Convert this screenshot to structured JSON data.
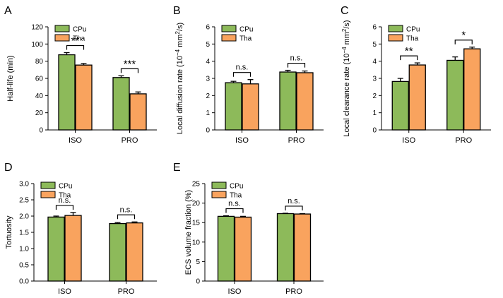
{
  "colors": {
    "cpu": "#8DBA5A",
    "tha": "#F9A35E",
    "axis": "#000000"
  },
  "chart_data": [
    {
      "panel_letter": "A",
      "type": "bar",
      "categories": [
        "ISO",
        "PRO"
      ],
      "series": [
        {
          "name": "CPu",
          "values": [
            87.5,
            61
          ],
          "errors": [
            2.5,
            2
          ]
        },
        {
          "name": "Tha",
          "values": [
            75.5,
            42
          ],
          "errors": [
            1.8,
            2.2
          ]
        }
      ],
      "ylabel": "Half-life (min)",
      "ylim": [
        0,
        120
      ],
      "yticks": [
        0,
        20,
        40,
        60,
        80,
        100,
        120
      ],
      "yticklabels": [
        "0",
        "20",
        "40",
        "60",
        "80",
        "100",
        "120"
      ],
      "significance": [
        "**",
        "***"
      ],
      "legend": [
        "CPu",
        "Tha"
      ]
    },
    {
      "panel_letter": "B",
      "type": "bar",
      "categories": [
        "ISO",
        "PRO"
      ],
      "series": [
        {
          "name": "CPu",
          "values": [
            2.75,
            3.37
          ],
          "errors": [
            0.08,
            0.1
          ]
        },
        {
          "name": "Tha",
          "values": [
            2.68,
            3.33
          ],
          "errors": [
            0.25,
            0.1
          ]
        }
      ],
      "ylabel_parts": [
        "Local diffusion rate (10",
        "−4",
        " mm",
        "2",
        "/s)"
      ],
      "ylim": [
        0,
        6
      ],
      "yticks": [
        0,
        1,
        2,
        3,
        4,
        5,
        6
      ],
      "yticklabels": [
        "0",
        "1",
        "2",
        "3",
        "4",
        "5",
        "6"
      ],
      "significance": [
        "n.s.",
        "n.s."
      ],
      "legend": [
        "CPu",
        "Tha"
      ]
    },
    {
      "panel_letter": "C",
      "type": "bar",
      "categories": [
        "ISO",
        "PRO"
      ],
      "series": [
        {
          "name": "CPu",
          "values": [
            2.82,
            4.05
          ],
          "errors": [
            0.18,
            0.2
          ]
        },
        {
          "name": "Tha",
          "values": [
            3.78,
            4.72
          ],
          "errors": [
            0.12,
            0.1
          ]
        }
      ],
      "ylabel_parts": [
        "Local clearance rate (10",
        "−4",
        " mm",
        "2",
        "/s)"
      ],
      "ylim": [
        0,
        6
      ],
      "yticks": [
        0,
        1,
        2,
        3,
        4,
        5,
        6
      ],
      "yticklabels": [
        "0",
        "1",
        "2",
        "3",
        "4",
        "5",
        "6"
      ],
      "significance": [
        "**",
        "*"
      ],
      "legend": [
        "CPu",
        "Tha"
      ]
    },
    {
      "panel_letter": "D",
      "type": "bar",
      "categories": [
        "ISO",
        "PRO"
      ],
      "series": [
        {
          "name": "CPu",
          "values": [
            1.97,
            1.77
          ],
          "errors": [
            0.03,
            0.03
          ]
        },
        {
          "name": "Tha",
          "values": [
            2.02,
            1.79
          ],
          "errors": [
            0.09,
            0.03
          ]
        }
      ],
      "ylabel": "Tortuosity",
      "ylim": [
        0,
        3
      ],
      "yticks": [
        0,
        0.5,
        1,
        1.5,
        2,
        2.5,
        3
      ],
      "yticklabels": [
        "0.0",
        "0.5",
        "1.0",
        "1.5",
        "2.0",
        "2.5",
        "3.0"
      ],
      "significance": [
        "n.s.",
        "n.s."
      ],
      "legend": [
        "CPu",
        "Tha"
      ]
    },
    {
      "panel_letter": "E",
      "type": "bar",
      "categories": [
        "ISO",
        "PRO"
      ],
      "series": [
        {
          "name": "CPu",
          "values": [
            16.6,
            17.3
          ],
          "errors": [
            0.15,
            0.1
          ]
        },
        {
          "name": "Tha",
          "values": [
            16.4,
            17.2
          ],
          "errors": [
            0.2,
            0.1
          ]
        }
      ],
      "ylabel": "ECS volume fraction (%)",
      "ylim": [
        0,
        25
      ],
      "yticks": [
        0,
        5,
        10,
        15,
        20,
        25
      ],
      "yticklabels": [
        "0",
        "5",
        "10",
        "15",
        "20",
        "25"
      ],
      "significance": [
        "n.s.",
        "n.s."
      ],
      "legend": [
        "CPu",
        "Tha"
      ]
    }
  ]
}
